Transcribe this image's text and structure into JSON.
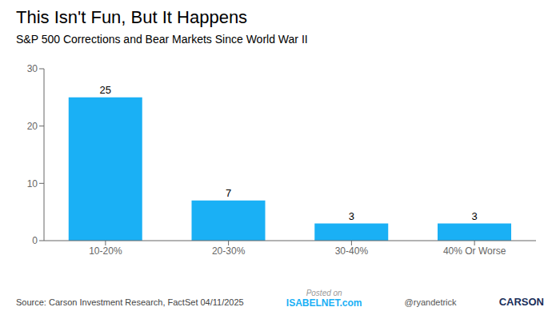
{
  "chart_data": {
    "type": "bar",
    "title": "This Isn't Fun, But It Happens",
    "subtitle": "S&P 500 Corrections and Bear Markets Since World War II",
    "categories": [
      "10-20%",
      "20-30%",
      "30-40%",
      "40% Or Worse"
    ],
    "values": [
      25,
      7,
      3,
      3
    ],
    "color": "#1ab0f5",
    "ylim": [
      0,
      30
    ],
    "yticks": [
      0,
      10,
      20,
      30
    ],
    "grid": false,
    "data_labels": true,
    "annotations": [
      "Source: Carson Investment Research, FactSet 04/11/2025",
      "Posted on",
      "ISABELNET.com",
      "@ryandetrick",
      "CARSON"
    ]
  }
}
